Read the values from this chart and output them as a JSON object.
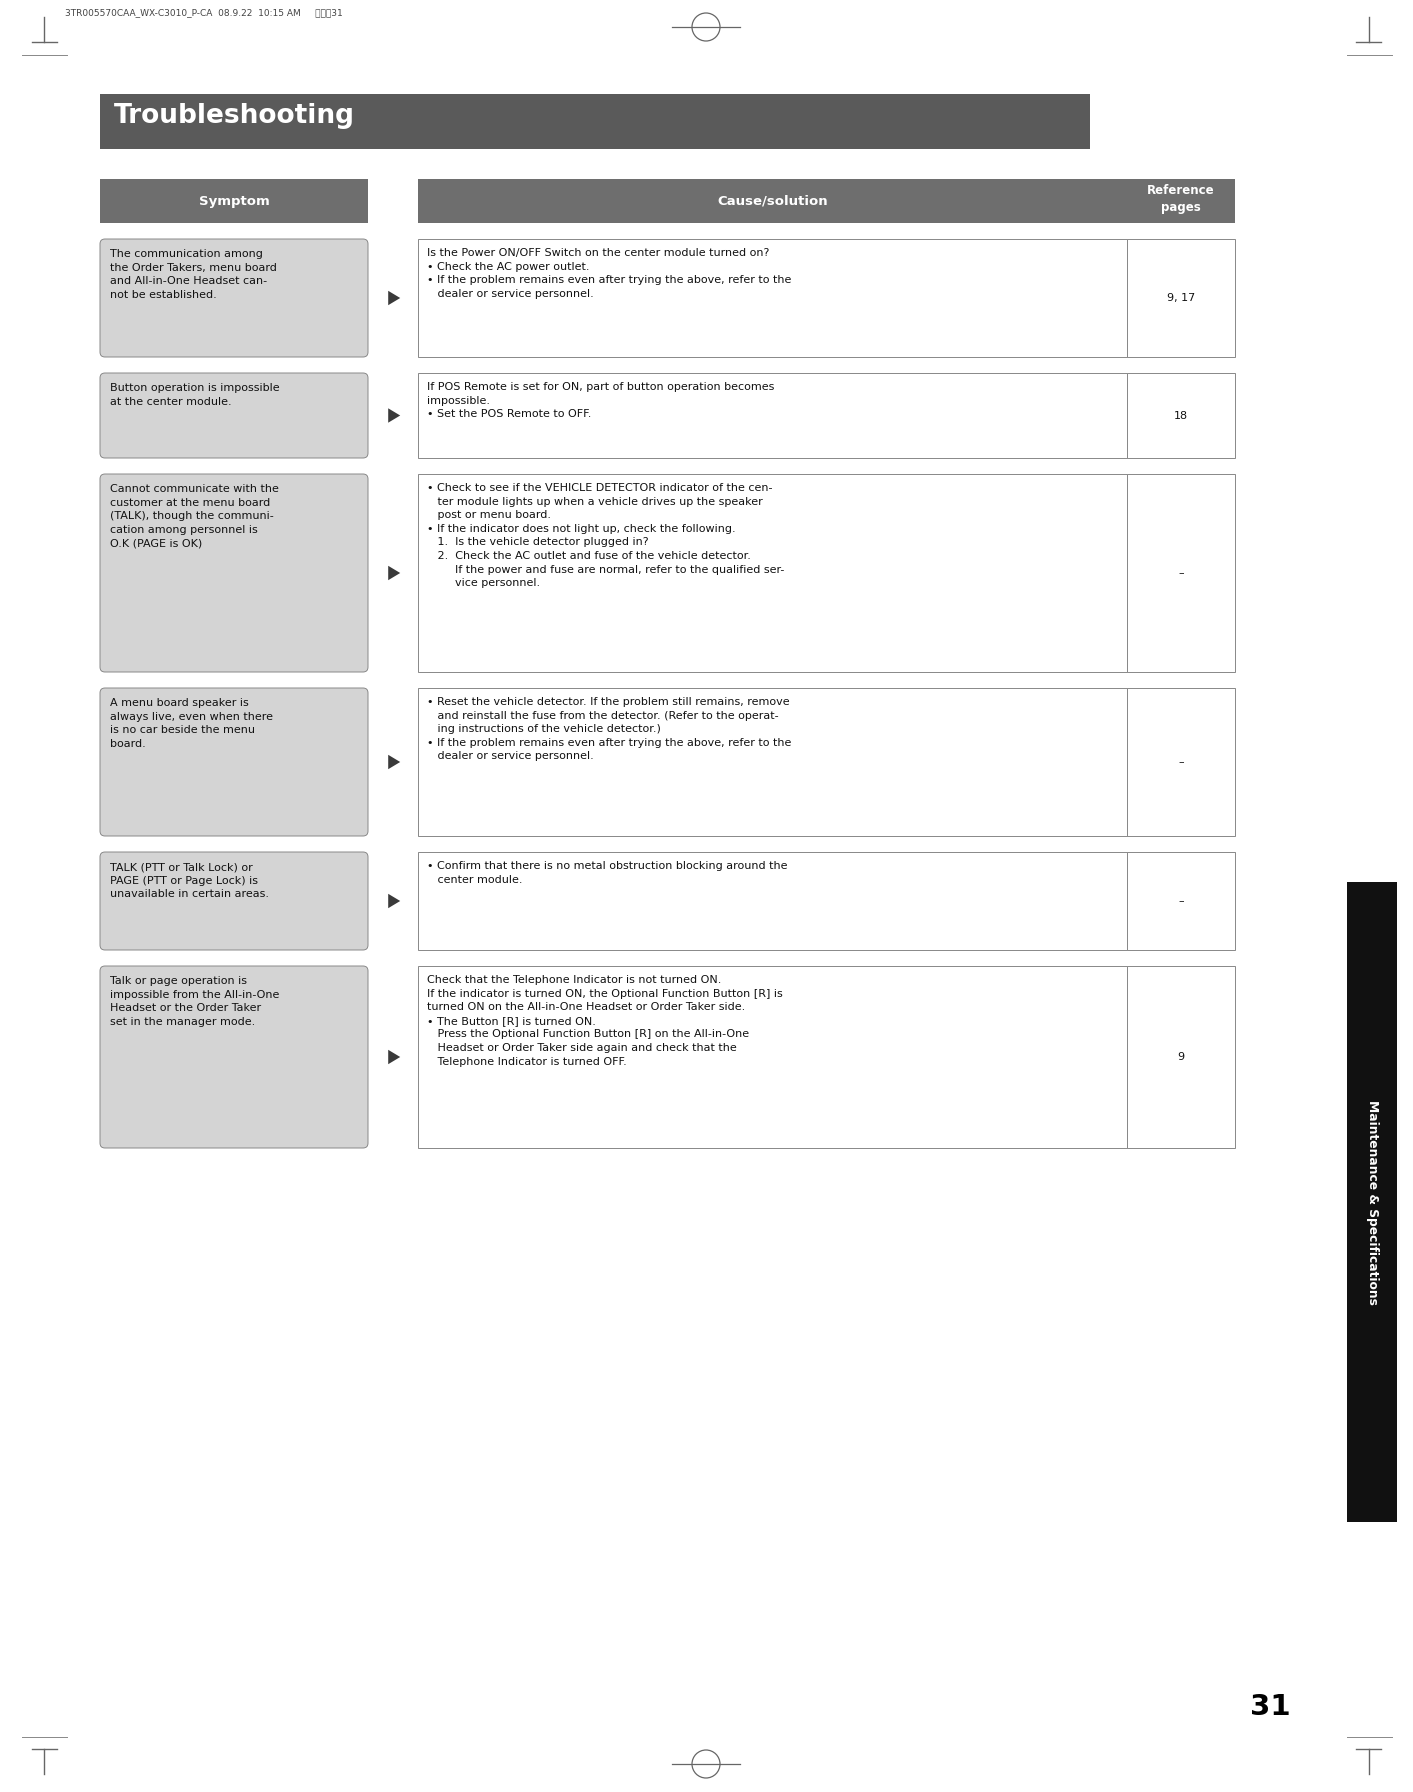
{
  "page_bg": "#ffffff",
  "title": "Troubleshooting",
  "title_bg": "#5a5a5a",
  "title_color": "#ffffff",
  "title_fontsize": 19,
  "header_bg": "#6e6e6e",
  "header_color": "#ffffff",
  "symptom_header": "Symptom",
  "cause_header": "Cause/solution",
  "ref_header": "Reference\npages",
  "symptom_box_bg": "#d4d4d4",
  "cause_box_bg": "#ffffff",
  "box_border": "#888888",
  "arrow_color": "#3a3a3a",
  "text_color": "#111111",
  "body_fontsize": 8.0,
  "tab_label_bg": "#111111",
  "tab_label_color": "#ffffff",
  "tab_label_text": "Maintenance & Specifications",
  "page_number": "31",
  "meta_text": "3TR005570CAA_WX-C3010_P-CA  08.9.22  10:15 AM     ペーシ31",
  "rows": [
    {
      "symptom": "The communication among\nthe Order Takers, menu board\nand All-in-One Headset can-\nnot be established.",
      "cause": "Is the Power ON/OFF Switch on the center module turned on?\n• Check the AC power outlet.\n• If the problem remains even after trying the above, refer to the\n   dealer or service personnel.",
      "ref": "9, 17"
    },
    {
      "symptom": "Button operation is impossible\nat the center module.",
      "cause": "If POS Remote is set for ON, part of button operation becomes\nimpossible.\n• Set the POS Remote to OFF.",
      "ref": "18"
    },
    {
      "symptom": "Cannot communicate with the\ncustomer at the menu board\n(TALK), though the communi-\ncation among personnel is\nO.K (PAGE is OK)",
      "cause": "• Check to see if the VEHICLE DETECTOR indicator of the cen-\n   ter module lights up when a vehicle drives up the speaker\n   post or menu board.\n• If the indicator does not light up, check the following.\n   1.  Is the vehicle detector plugged in?\n   2.  Check the AC outlet and fuse of the vehicle detector.\n        If the power and fuse are normal, refer to the qualified ser-\n        vice personnel.",
      "ref": "–"
    },
    {
      "symptom": "A menu board speaker is\nalways live, even when there\nis no car beside the menu\nboard.",
      "cause": "• Reset the vehicle detector. If the problem still remains, remove\n   and reinstall the fuse from the detector. (Refer to the operat-\n   ing instructions of the vehicle detector.)\n• If the problem remains even after trying the above, refer to the\n   dealer or service personnel.",
      "ref": "–"
    },
    {
      "symptom": "TALK (PTT or Talk Lock) or\nPAGE (PTT or Page Lock) is\nunavailable in certain areas.",
      "cause": "• Confirm that there is no metal obstruction blocking around the\n   center module.",
      "ref": "–"
    },
    {
      "symptom": "Talk or page operation is\nimpossible from the All-in-One\nHeadset or the Order Taker\nset in the manager mode.",
      "cause": "Check that the Telephone Indicator is not turned ON.\nIf the indicator is turned ON, the Optional Function Button [R] is\nturned ON on the All-in-One Headset or Order Taker side.\n• The Button [R] is turned ON.\n   Press the Optional Function Button [R] on the All-in-One\n   Headset or Order Taker side again and check that the\n   Telephone Indicator is turned OFF.",
      "ref": "9"
    }
  ]
}
